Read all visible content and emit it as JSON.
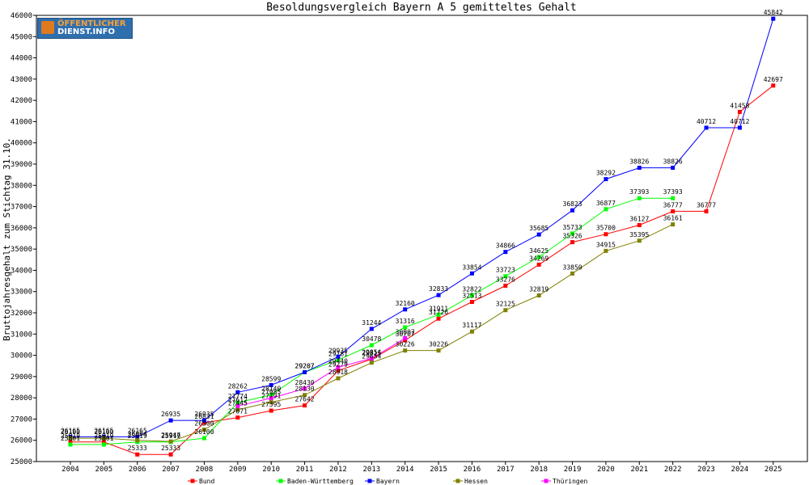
{
  "chart_data": {
    "type": "line",
    "title": "Besoldungsvergleich Bayern A 5 gemitteltes Gehalt",
    "ylabel": "Bruttojahresgehalt zum Stichtag 31.10.",
    "xlabel": "",
    "ylim": [
      25000,
      46000
    ],
    "yticks": [
      25000,
      26000,
      27000,
      28000,
      29000,
      30000,
      31000,
      32000,
      33000,
      34000,
      35000,
      36000,
      37000,
      38000,
      39000,
      40000,
      41000,
      42000,
      43000,
      44000,
      45000,
      46000
    ],
    "x": [
      "2004",
      "2005",
      "2006",
      "2007",
      "2008",
      "2009",
      "2010",
      "2011",
      "2012",
      "2013",
      "2014",
      "2015",
      "2016",
      "2017",
      "2018",
      "2019",
      "2020",
      "2021",
      "2022",
      "2023",
      "2024",
      "2025"
    ],
    "grid": false,
    "legend_position": "bottom",
    "series": [
      {
        "name": "Bund",
        "color": "#ff0000",
        "values": [
          25919,
          25919,
          25333,
          25333,
          26831,
          27071,
          27395,
          27642,
          29279,
          29815,
          30707,
          31726,
          32513,
          33276,
          34269,
          35326,
          35700,
          36127,
          36777,
          36777,
          41458,
          42697
        ]
      },
      {
        "name": "Baden-Württemberg",
        "color": "#00ff00",
        "values": [
          25801,
          25801,
          25919,
          25919,
          26100,
          27774,
          28140,
          29207,
          29781,
          30478,
          31316,
          31911,
          32822,
          33723,
          34625,
          35733,
          36877,
          37393,
          37393,
          null,
          null,
          null
        ]
      },
      {
        "name": "Bayern",
        "color": "#0000ff",
        "values": [
          26165,
          26165,
          26165,
          26935,
          26935,
          28262,
          28599,
          29207,
          29935,
          31244,
          32160,
          32833,
          33854,
          34866,
          35685,
          36823,
          38292,
          38826,
          38826,
          40712,
          40712,
          45842
        ]
      },
      {
        "name": "Hessen",
        "color": "#808000",
        "values": [
          26100,
          26100,
          26004,
          25947,
          26500,
          27445,
          27791,
          28130,
          28918,
          29654,
          30226,
          30226,
          31117,
          32125,
          32819,
          33850,
          34915,
          35395,
          36161,
          null,
          null,
          null
        ]
      },
      {
        "name": "Thüringen",
        "color": "#ff00ff",
        "values": [
          null,
          null,
          null,
          null,
          null,
          27612,
          27985,
          28430,
          29440,
          29854,
          30807,
          null,
          null,
          null,
          null,
          null,
          null,
          null,
          null,
          null,
          null,
          null
        ]
      }
    ]
  },
  "logo": {
    "line1": "ÖFFENTLICHER",
    "line2": "DIENST.INFO"
  }
}
